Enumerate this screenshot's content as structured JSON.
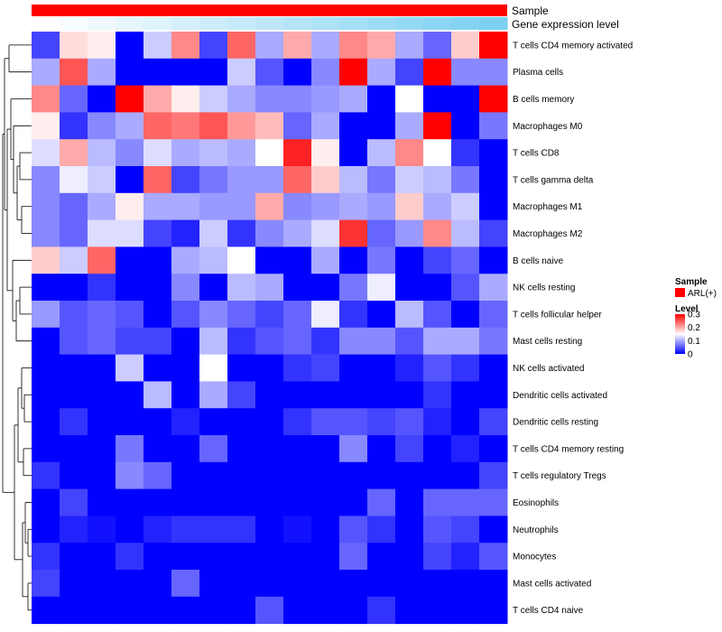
{
  "chart_data": {
    "type": "heatmap",
    "annotation_tracks": [
      {
        "name": "Sample"
      },
      {
        "name": "Gene expression level"
      }
    ],
    "rows": [
      "T cells CD4 memory activated",
      "Plasma cells",
      "B cells memory",
      "Macrophages M0",
      "T cells CD8",
      "T cells gamma delta",
      "Macrophages M1",
      "Macrophages M2",
      "B cells naive",
      "NK cells resting",
      "T cells follicular helper",
      "Mast cells resting",
      "NK cells activated",
      "Dendritic cells activated",
      "Dendritic cells resting",
      "T cells CD4 memory resting",
      "T cells regulatory  Tregs",
      "Eosinophils",
      "Neutrophils",
      "Monocytes",
      "Mast cells activated",
      "T cells CD4 naive"
    ],
    "n_columns": 17,
    "values": [
      [
        0.04,
        0.17,
        0.16,
        0.0,
        0.12,
        0.22,
        0.04,
        0.24,
        0.1,
        0.2,
        0.1,
        0.22,
        0.2,
        0.1,
        0.06,
        0.18,
        0.3
      ],
      [
        0.1,
        0.25,
        0.1,
        0.0,
        0.0,
        0.0,
        0.0,
        0.12,
        0.05,
        0.0,
        0.08,
        0.3,
        0.1,
        0.04,
        0.3,
        0.08,
        0.08
      ],
      [
        0.22,
        0.06,
        0.0,
        0.3,
        0.2,
        0.16,
        0.12,
        0.1,
        0.08,
        0.08,
        0.09,
        0.1,
        0.0,
        0.15,
        0.0,
        0.0,
        0.3
      ],
      [
        0.16,
        0.03,
        0.08,
        0.1,
        0.24,
        0.23,
        0.25,
        0.21,
        0.19,
        0.06,
        0.1,
        0.0,
        0.0,
        0.1,
        0.3,
        0.0,
        0.07
      ],
      [
        0.13,
        0.2,
        0.11,
        0.08,
        0.13,
        0.1,
        0.11,
        0.1,
        0.15,
        0.28,
        0.16,
        0.0,
        0.11,
        0.22,
        0.15,
        0.03,
        0.0
      ],
      [
        0.08,
        0.14,
        0.12,
        0.0,
        0.24,
        0.04,
        0.07,
        0.09,
        0.09,
        0.24,
        0.18,
        0.11,
        0.07,
        0.12,
        0.11,
        0.07,
        0.0
      ],
      [
        0.08,
        0.06,
        0.1,
        0.16,
        0.1,
        0.1,
        0.09,
        0.09,
        0.2,
        0.08,
        0.09,
        0.1,
        0.09,
        0.18,
        0.1,
        0.12,
        0.0
      ],
      [
        0.08,
        0.06,
        0.13,
        0.13,
        0.04,
        0.02,
        0.12,
        0.03,
        0.08,
        0.1,
        0.13,
        0.27,
        0.06,
        0.09,
        0.22,
        0.11,
        0.04
      ],
      [
        0.18,
        0.12,
        0.24,
        0.0,
        0.0,
        0.1,
        0.11,
        0.15,
        0.0,
        0.0,
        0.1,
        0.0,
        0.07,
        0.0,
        0.04,
        0.06,
        0.0
      ],
      [
        0.0,
        0.0,
        0.03,
        0.0,
        0.0,
        0.08,
        0.0,
        0.11,
        0.1,
        0.0,
        0.0,
        0.07,
        0.14,
        0.0,
        0.0,
        0.05,
        0.1
      ],
      [
        0.09,
        0.05,
        0.06,
        0.05,
        0.0,
        0.05,
        0.08,
        0.06,
        0.04,
        0.06,
        0.14,
        0.03,
        0.0,
        0.11,
        0.05,
        0.0,
        0.06
      ],
      [
        0.0,
        0.05,
        0.06,
        0.04,
        0.04,
        0.0,
        0.11,
        0.03,
        0.05,
        0.06,
        0.03,
        0.08,
        0.08,
        0.05,
        0.1,
        0.1,
        0.07
      ],
      [
        0.0,
        0.0,
        0.0,
        0.12,
        0.0,
        0.0,
        0.15,
        0.0,
        0.0,
        0.03,
        0.04,
        0.0,
        0.0,
        0.02,
        0.05,
        0.03,
        0.0
      ],
      [
        0.0,
        0.0,
        0.0,
        0.0,
        0.11,
        0.0,
        0.1,
        0.04,
        0.0,
        0.0,
        0.0,
        0.0,
        0.0,
        0.0,
        0.03,
        0.0,
        0.0
      ],
      [
        0.0,
        0.03,
        0.0,
        0.0,
        0.0,
        0.02,
        0.0,
        0.0,
        0.0,
        0.03,
        0.05,
        0.05,
        0.04,
        0.05,
        0.02,
        0.0,
        0.04
      ],
      [
        0.0,
        0.0,
        0.0,
        0.07,
        0.0,
        0.0,
        0.06,
        0.0,
        0.0,
        0.0,
        0.0,
        0.08,
        0.0,
        0.04,
        0.0,
        0.02,
        0.0
      ],
      [
        0.03,
        0.0,
        0.0,
        0.08,
        0.06,
        0.0,
        0.0,
        0.0,
        0.0,
        0.0,
        0.0,
        0.0,
        0.0,
        0.0,
        0.0,
        0.0,
        0.04
      ],
      [
        0.0,
        0.04,
        0.0,
        0.0,
        0.0,
        0.0,
        0.0,
        0.0,
        0.0,
        0.0,
        0.0,
        0.0,
        0.06,
        0.0,
        0.06,
        0.06,
        0.06
      ],
      [
        0.0,
        0.02,
        0.01,
        0.0,
        0.02,
        0.03,
        0.03,
        0.03,
        0.0,
        0.01,
        0.0,
        0.05,
        0.03,
        0.0,
        0.05,
        0.04,
        0.0
      ],
      [
        0.03,
        0.0,
        0.0,
        0.03,
        0.0,
        0.0,
        0.0,
        0.0,
        0.0,
        0.0,
        0.0,
        0.06,
        0.0,
        0.0,
        0.04,
        0.02,
        0.05
      ],
      [
        0.04,
        0.0,
        0.0,
        0.0,
        0.0,
        0.06,
        0.0,
        0.0,
        0.0,
        0.0,
        0.0,
        0.0,
        0.0,
        0.0,
        0.0,
        0.0,
        0.0
      ],
      [
        0.0,
        0.0,
        0.0,
        0.0,
        0.0,
        0.0,
        0.0,
        0.0,
        0.05,
        0.0,
        0.0,
        0.0,
        0.03,
        0.0,
        0.0,
        0.0,
        0.0
      ]
    ],
    "gene_expression_level": [
      0.0,
      0.05,
      0.1,
      0.15,
      0.2,
      0.25,
      0.3,
      0.35,
      0.4,
      0.45,
      0.5,
      0.55,
      0.6,
      0.65,
      0.7,
      0.75,
      0.8
    ],
    "color_scale": {
      "min": 0,
      "mid": 0.15,
      "max": 0.3,
      "low_color": "#0000ff",
      "mid_color": "#ffffff",
      "high_color": "#ff0000"
    },
    "sample_color": "#ff0000",
    "gene_expr_colors": {
      "low": "#ffffff",
      "high": "#5bc4ee"
    },
    "legend": {
      "sample_title": "Sample",
      "sample_item": "ARL(+)",
      "level_title": "Level",
      "level_ticks": [
        "0.3",
        "0.2",
        "0.1",
        "0"
      ],
      "level_tick_values": [
        0.3,
        0.2,
        0.1,
        0
      ]
    },
    "dendrogram": "rows-left"
  }
}
